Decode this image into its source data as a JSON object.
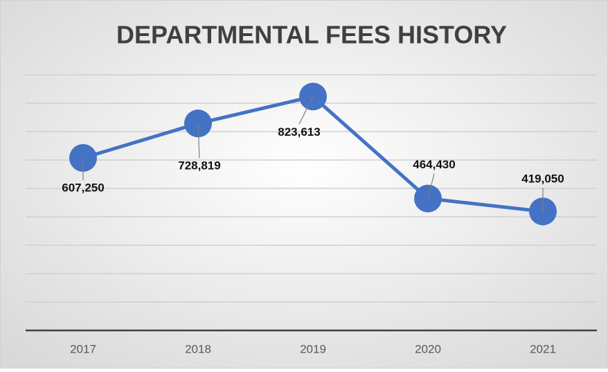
{
  "chart_data": {
    "type": "line",
    "title": "DEPARTMENTAL FEES HISTORY",
    "categories": [
      "2017",
      "2018",
      "2019",
      "2020",
      "2021"
    ],
    "series": [
      {
        "name": "Departmental Fees",
        "color": "#4472c4",
        "values": [
          607250,
          728819,
          823613,
          464430,
          419050
        ],
        "value_labels": [
          "607,250",
          "728,819",
          "823,613",
          "464,430",
          "419,050"
        ]
      }
    ],
    "ylim": [
      0,
      900000
    ],
    "yticks": [
      0,
      100000,
      200000,
      300000,
      400000,
      500000,
      600000,
      700000,
      800000,
      900000
    ],
    "grid": true
  }
}
